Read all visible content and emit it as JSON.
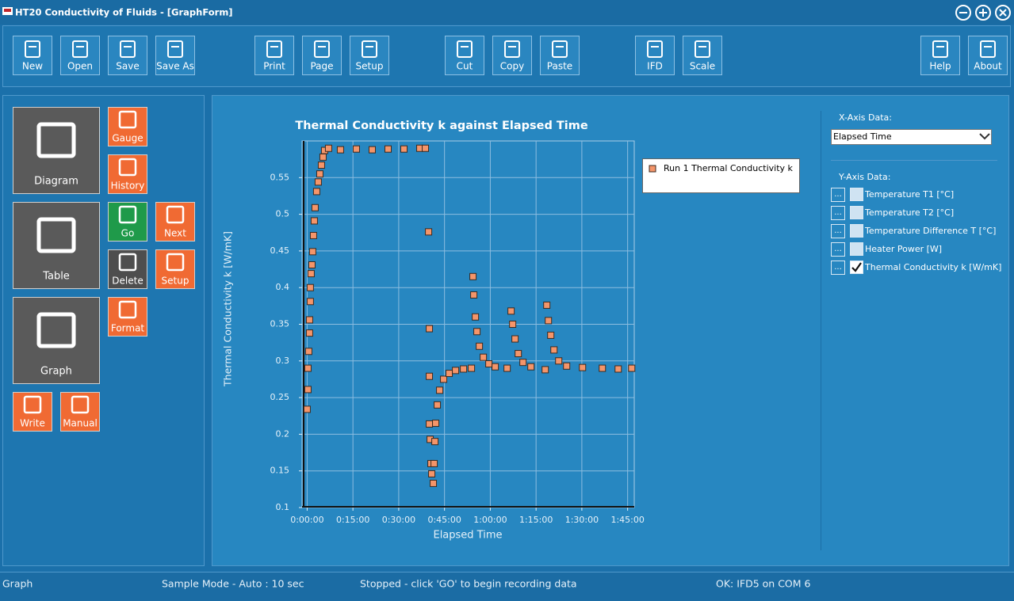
{
  "window": {
    "title": "HT20 Conductivity of Fluids - [GraphForm]"
  },
  "toolbar": [
    "New",
    "Open",
    "Save",
    "Save As",
    "Print",
    "Page",
    "Setup",
    "Cut",
    "Copy",
    "Paste",
    "IFD",
    "Scale",
    "Help",
    "About"
  ],
  "sidebar": [
    "Diagram",
    "Table",
    "Graph",
    "Gauge",
    "History",
    "Go",
    "Next",
    "Delete",
    "Setup",
    "Format",
    "Write",
    "Manual"
  ],
  "x_axis_panel": {
    "label": "X-Axis Data:",
    "selected": "Elapsed Time"
  },
  "y_axis_panel": {
    "label": "Y-Axis Data:",
    "items": [
      {
        "button": "...",
        "label": "Temperature T1  [°C]",
        "checked": false
      },
      {
        "button": "...",
        "label": "Temperature T2  [°C]",
        "checked": false
      },
      {
        "button": "...",
        "label": "Temperature Difference T [°C]",
        "checked": false
      },
      {
        "button": "...",
        "label": "Heater Power  [W]",
        "checked": false
      },
      {
        "button": "...",
        "label": "Thermal Conductivity k [W/mK]",
        "checked": true
      }
    ]
  },
  "status_bar": [
    "Graph",
    "Sample Mode - Auto : 10 sec",
    "Stopped - click 'GO' to begin recording data",
    "OK: IFD5 on COM 6"
  ],
  "chart_data": {
    "type": "scatter",
    "title": "Thermal Conductivity k against Elapsed Time",
    "x_label": "Elapsed Time",
    "y_label": "Thermal Conductivity k  [W/mK]",
    "xlim": [
      -100,
      6430
    ],
    "ylim": [
      0.1,
      0.6
    ],
    "xticks": [
      {
        "value": 0,
        "label": "0:00:00"
      },
      {
        "value": 900,
        "label": "0:15:00"
      },
      {
        "value": 1800,
        "label": "0:30:00"
      },
      {
        "value": 2700,
        "label": "0:45:00"
      },
      {
        "value": 3600,
        "label": "1:00:00"
      },
      {
        "value": 4500,
        "label": "1:15:00"
      },
      {
        "value": 5400,
        "label": "1:30:00"
      },
      {
        "value": 6300,
        "label": "1:45:00"
      }
    ],
    "yticks": [
      0.1,
      0.15,
      0.2,
      0.25,
      0.3,
      0.35,
      0.4,
      0.45,
      0.5,
      0.55
    ],
    "grid": true,
    "legend": "upper right outside",
    "x": [
      0,
      16,
      16,
      31,
      47,
      47,
      62,
      62,
      78,
      94,
      109,
      125,
      140,
      156,
      187,
      218,
      250,
      281,
      312,
      343,
      421,
      655,
      967,
      1279,
      1591,
      1903,
      2215,
      2324,
      2387,
      2402,
      2402,
      2402,
      2418,
      2434,
      2449,
      2480,
      2496,
      2512,
      2527,
      2558,
      2605,
      2683,
      2792,
      2917,
      3073,
      3229,
      3260,
      3276,
      3307,
      3338,
      3385,
      3463,
      3572,
      3697,
      3931,
      4009,
      4040,
      4087,
      4150,
      4243,
      4399,
      4680,
      4711,
      4742,
      4789,
      4852,
      4945,
      5101,
      5413,
      5803,
      6115,
      6380
    ],
    "series": [
      {
        "name": "Run 1 Thermal Conductivity k",
        "color": "#f4956a",
        "values": [
          0.234,
          0.261,
          0.29,
          0.313,
          0.338,
          0.356,
          0.381,
          0.4,
          0.419,
          0.431,
          0.449,
          0.471,
          0.491,
          0.509,
          0.531,
          0.544,
          0.555,
          0.567,
          0.578,
          0.587,
          0.59,
          0.588,
          0.589,
          0.588,
          0.589,
          0.589,
          0.59,
          0.59,
          0.476,
          0.344,
          0.279,
          0.214,
          0.193,
          0.16,
          0.146,
          0.133,
          0.16,
          0.19,
          0.215,
          0.24,
          0.26,
          0.275,
          0.283,
          0.287,
          0.289,
          0.29,
          0.415,
          0.39,
          0.36,
          0.34,
          0.32,
          0.305,
          0.296,
          0.292,
          0.29,
          0.368,
          0.35,
          0.33,
          0.31,
          0.298,
          0.292,
          0.288,
          0.376,
          0.355,
          0.335,
          0.315,
          0.3,
          0.293,
          0.291,
          0.29,
          0.289,
          0.29
        ]
      }
    ]
  }
}
